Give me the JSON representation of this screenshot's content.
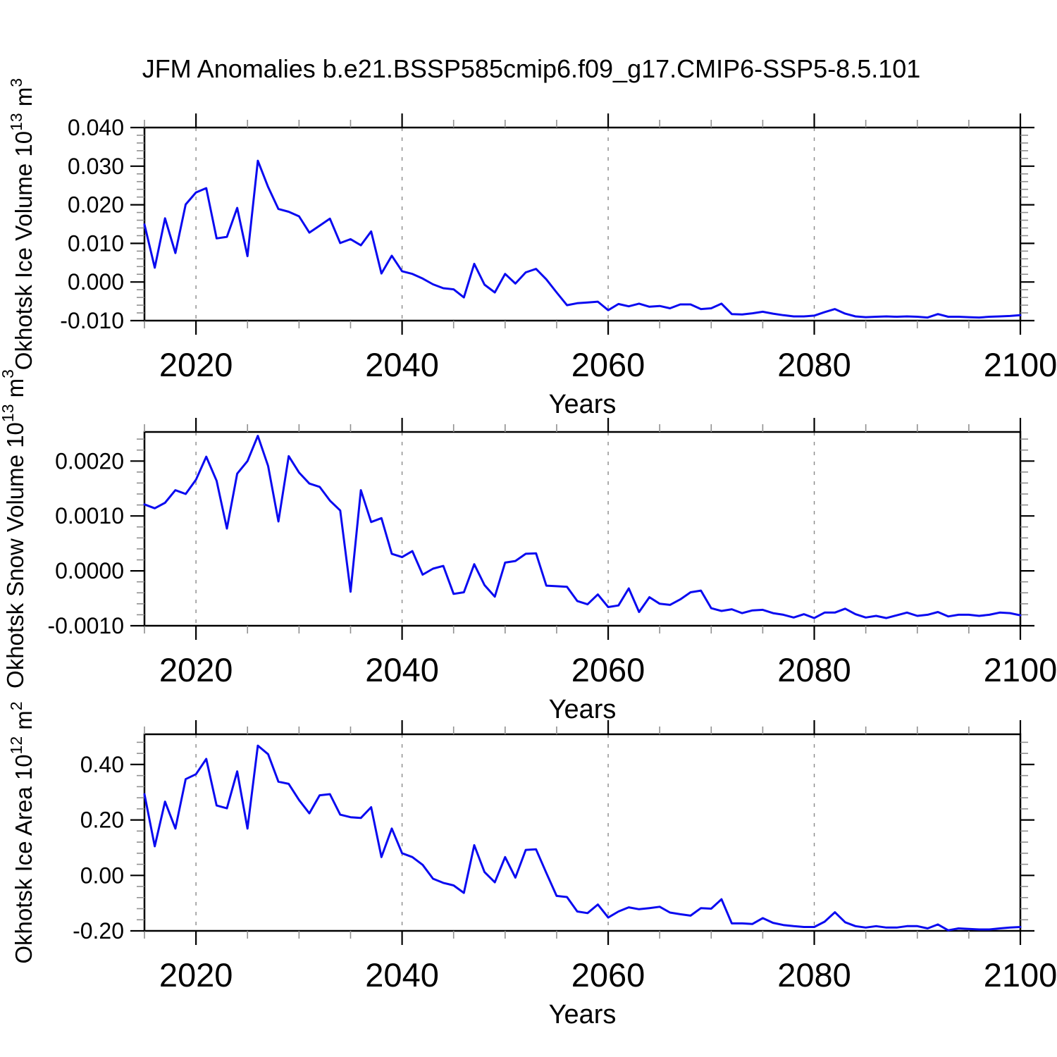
{
  "title": "JFM Anomalies b.e21.BSSP585cmip6.f09_g17.CMIP6-SSP5-8.5.101",
  "colors": {
    "line": "#0a0af0",
    "frame": "#000000",
    "major_tick": "#000000",
    "minor_tick": "#909090",
    "gridline": "#8a8a8a",
    "background": "#ffffff"
  },
  "chart_data": {
    "type": "line",
    "x_label": "Years",
    "x_major_ticks": [
      2020,
      2040,
      2060,
      2080,
      2100
    ],
    "x_major_tick_labels": [
      "2020",
      "2040",
      "2060",
      "2080",
      "2100"
    ],
    "x_minor_step": 5,
    "xlim": [
      2015,
      2100
    ],
    "gridline_years": [
      2020,
      2040,
      2060,
      2080
    ],
    "grid": "vertical-dashed",
    "legend": "none",
    "x": [
      2015,
      2016,
      2017,
      2018,
      2019,
      2020,
      2021,
      2022,
      2023,
      2024,
      2025,
      2026,
      2027,
      2028,
      2029,
      2030,
      2031,
      2032,
      2033,
      2034,
      2035,
      2036,
      2037,
      2038,
      2039,
      2040,
      2041,
      2042,
      2043,
      2044,
      2045,
      2046,
      2047,
      2048,
      2049,
      2050,
      2051,
      2052,
      2053,
      2054,
      2055,
      2056,
      2057,
      2058,
      2059,
      2060,
      2061,
      2062,
      2063,
      2064,
      2065,
      2066,
      2067,
      2068,
      2069,
      2070,
      2071,
      2072,
      2073,
      2074,
      2075,
      2076,
      2077,
      2078,
      2079,
      2080,
      2081,
      2082,
      2083,
      2084,
      2085,
      2086,
      2087,
      2088,
      2089,
      2090,
      2091,
      2092,
      2093,
      2094,
      2095,
      2096,
      2097,
      2098,
      2099,
      2100
    ],
    "panels": [
      {
        "name": "okhotsk-ice-volume",
        "ylabel_text": "Okhotsk Ice Volume 10^13 m^3",
        "ylabel": {
          "prefix": "Okhotsk Ice Volume 10",
          "exp": "13",
          "unit": " m",
          "unit_exp": "3"
        },
        "ylim": [
          -0.01,
          0.04
        ],
        "y_major_ticks": [
          0.04,
          0.03,
          0.02,
          0.01,
          0.0,
          -0.01
        ],
        "y_tick_labels": [
          "0.040",
          "0.030",
          "0.020",
          "0.010",
          "0.000",
          "-0.010"
        ],
        "y_minor_step": 0.002,
        "values": [
          0.0149,
          0.0037,
          0.0165,
          0.0075,
          0.0201,
          0.0232,
          0.0243,
          0.0113,
          0.0117,
          0.0192,
          0.0067,
          0.0314,
          0.0246,
          0.0189,
          0.0182,
          0.017,
          0.0128,
          0.0146,
          0.0164,
          0.0101,
          0.0111,
          0.0095,
          0.0131,
          0.0022,
          0.0068,
          0.0028,
          0.0021,
          0.0009,
          -0.0006,
          -0.0016,
          -0.0019,
          -0.004,
          0.0047,
          -0.0007,
          -0.0027,
          0.0021,
          -0.0004,
          0.0025,
          0.0034,
          0.0007,
          -0.0027,
          -0.006,
          -0.0055,
          -0.0053,
          -0.0051,
          -0.0073,
          -0.0057,
          -0.0063,
          -0.0056,
          -0.0064,
          -0.0062,
          -0.0068,
          -0.0058,
          -0.0058,
          -0.007,
          -0.0068,
          -0.0056,
          -0.0083,
          -0.0084,
          -0.0081,
          -0.0077,
          -0.0082,
          -0.0086,
          -0.0089,
          -0.0089,
          -0.0087,
          -0.0078,
          -0.007,
          -0.0082,
          -0.0089,
          -0.0091,
          -0.009,
          -0.0089,
          -0.009,
          -0.0089,
          -0.009,
          -0.0092,
          -0.0083,
          -0.009,
          -0.009,
          -0.0091,
          -0.0092,
          -0.009,
          -0.0089,
          -0.0088,
          -0.0086
        ]
      },
      {
        "name": "okhotsk-snow-volume",
        "ylabel_text": "Okhotsk Snow Volume 10^13 m^3",
        "ylabel": {
          "prefix": "Okhotsk Snow Volume 10",
          "exp": "13",
          "unit": " m",
          "unit_exp": "3"
        },
        "ylim": [
          -0.001,
          0.00253
        ],
        "y_major_ticks": [
          0.002,
          0.001,
          0.0,
          -0.001
        ],
        "y_tick_labels": [
          "0.0020",
          "0.0010",
          "0.0000",
          "-0.0010"
        ],
        "y_minor_step": 0.0002,
        "values": [
          0.00121,
          0.00114,
          0.00124,
          0.00147,
          0.0014,
          0.00166,
          0.00208,
          0.00164,
          0.00077,
          0.00177,
          0.002,
          0.00246,
          0.00191,
          0.0009,
          0.00209,
          0.00179,
          0.00159,
          0.00153,
          0.00128,
          0.0011,
          -0.00038,
          0.00147,
          0.00089,
          0.00096,
          0.00031,
          0.00025,
          0.00036,
          -7e-05,
          4e-05,
          9e-05,
          -0.00042,
          -0.00039,
          0.00012,
          -0.00026,
          -0.00047,
          0.00015,
          0.00018,
          0.00031,
          0.00032,
          -0.00027,
          -0.00028,
          -0.00029,
          -0.00055,
          -0.00061,
          -0.00043,
          -0.00066,
          -0.00063,
          -0.00032,
          -0.00075,
          -0.00048,
          -0.0006,
          -0.00062,
          -0.00052,
          -0.00039,
          -0.00036,
          -0.00068,
          -0.00073,
          -0.0007,
          -0.00077,
          -0.00072,
          -0.00071,
          -0.00077,
          -0.0008,
          -0.00085,
          -0.00079,
          -0.00086,
          -0.00076,
          -0.00076,
          -0.00069,
          -0.00079,
          -0.00085,
          -0.00082,
          -0.00086,
          -0.00081,
          -0.00076,
          -0.00082,
          -0.0008,
          -0.00075,
          -0.00083,
          -0.0008,
          -0.0008,
          -0.00082,
          -0.0008,
          -0.00076,
          -0.00077,
          -0.00081
        ]
      },
      {
        "name": "okhotsk-ice-area",
        "ylabel_text": "Okhotsk Ice Area 10^12 m^2",
        "ylabel": {
          "prefix": "Okhotsk Ice Area 10",
          "exp": "12",
          "unit": " m",
          "unit_exp": "2"
        },
        "ylim": [
          -0.2,
          0.509
        ],
        "y_major_ticks": [
          0.4,
          0.2,
          0.0,
          -0.2
        ],
        "y_tick_labels": [
          "0.40",
          "0.20",
          "0.00",
          "-0.20"
        ],
        "y_minor_step": 0.04,
        "values": [
          0.293,
          0.105,
          0.266,
          0.169,
          0.347,
          0.365,
          0.42,
          0.252,
          0.242,
          0.375,
          0.169,
          0.468,
          0.437,
          0.338,
          0.33,
          0.272,
          0.224,
          0.289,
          0.293,
          0.219,
          0.21,
          0.207,
          0.246,
          0.066,
          0.169,
          0.08,
          0.066,
          0.038,
          -0.012,
          -0.027,
          -0.036,
          -0.063,
          0.109,
          0.012,
          -0.025,
          0.066,
          -0.008,
          0.092,
          0.094,
          0.009,
          -0.074,
          -0.078,
          -0.13,
          -0.136,
          -0.105,
          -0.152,
          -0.13,
          -0.115,
          -0.122,
          -0.118,
          -0.113,
          -0.134,
          -0.14,
          -0.145,
          -0.118,
          -0.12,
          -0.086,
          -0.173,
          -0.173,
          -0.175,
          -0.154,
          -0.171,
          -0.179,
          -0.183,
          -0.186,
          -0.186,
          -0.167,
          -0.133,
          -0.169,
          -0.183,
          -0.188,
          -0.183,
          -0.188,
          -0.188,
          -0.183,
          -0.183,
          -0.191,
          -0.177,
          -0.198,
          -0.191,
          -0.193,
          -0.195,
          -0.195,
          -0.191,
          -0.188,
          -0.186
        ]
      }
    ]
  }
}
